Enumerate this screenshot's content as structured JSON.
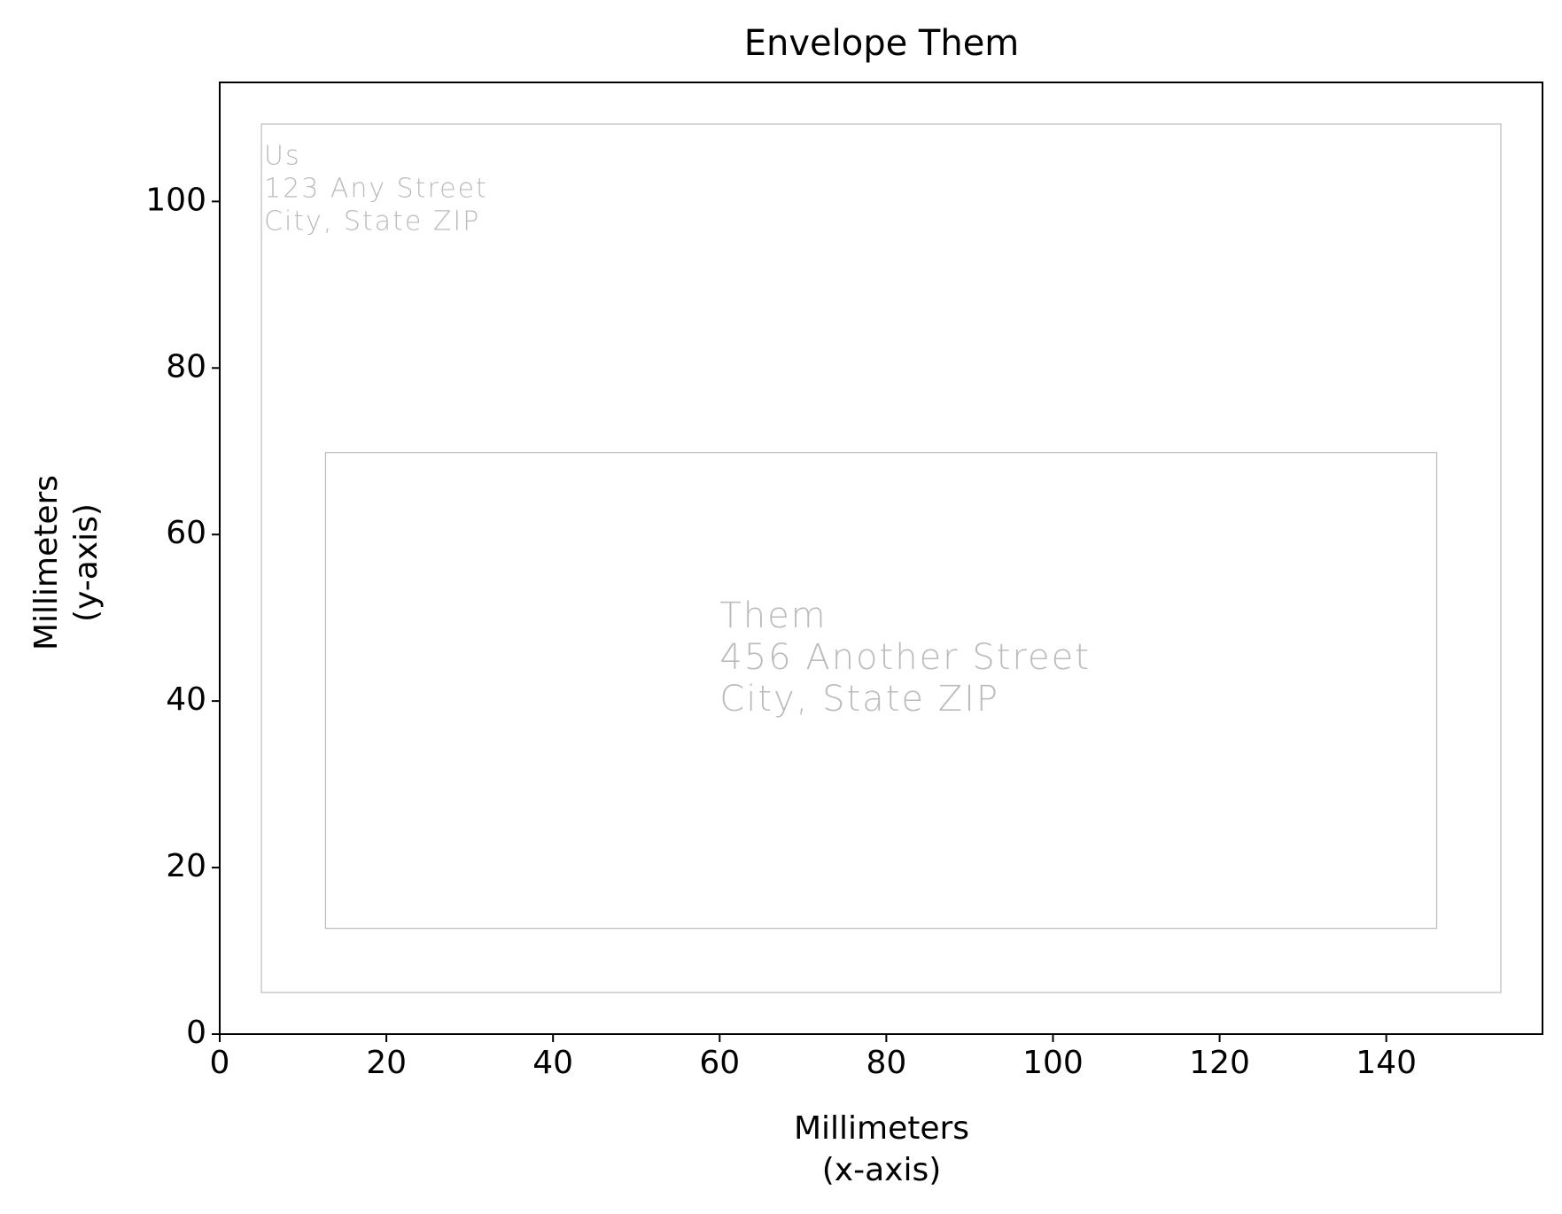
{
  "chart_data": {
    "type": "shapes",
    "title": "Envelope Them",
    "xlabel": [
      "Millimeters",
      "(x-axis)"
    ],
    "ylabel": [
      "Millimeters",
      "(y-axis)"
    ],
    "xlim": [
      0,
      158.75
    ],
    "ylim": [
      0,
      114.3
    ],
    "xticks": [
      0,
      20,
      40,
      60,
      80,
      100,
      120,
      140
    ],
    "yticks": [
      0,
      20,
      40,
      60,
      80,
      100
    ],
    "rects": [
      {
        "x": 5,
        "y": 5,
        "width": 148.75,
        "height": 104.3,
        "color": "#bbbbbb",
        "text": [
          "Us",
          "123 Any Street",
          "City, State ZIP"
        ]
      },
      {
        "x": 12.7,
        "y": 12.7,
        "width": 133.35,
        "height": 57.15,
        "color": "#bbbbbb",
        "text": [
          "Them",
          "456 Another Street",
          "City, State ZIP"
        ]
      }
    ]
  }
}
